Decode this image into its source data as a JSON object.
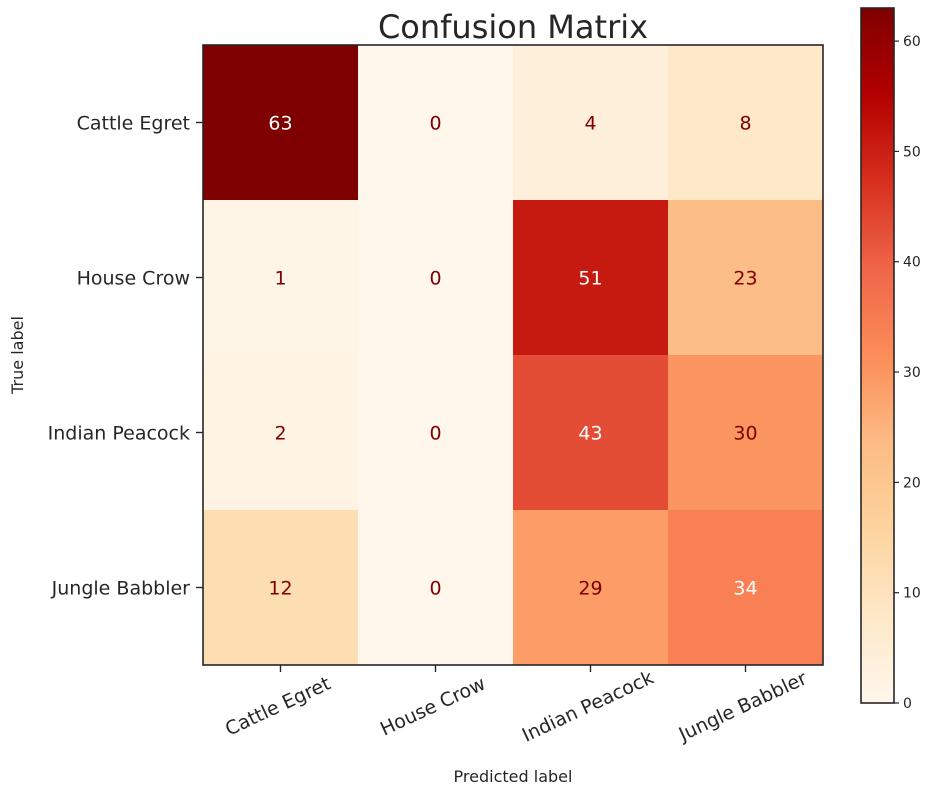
{
  "chart_data": {
    "type": "heatmap",
    "title": "Confusion Matrix",
    "xlabel": "Predicted label",
    "ylabel": "True label",
    "x_categories": [
      "Cattle Egret",
      "House Crow",
      "Indian Peacock",
      "Jungle Babbler"
    ],
    "y_categories": [
      "Cattle Egret",
      "House Crow",
      "Indian Peacock",
      "Jungle Babbler"
    ],
    "values": [
      [
        63,
        0,
        4,
        8
      ],
      [
        1,
        0,
        51,
        23
      ],
      [
        2,
        0,
        43,
        30
      ],
      [
        12,
        0,
        29,
        34
      ]
    ],
    "colormap": "OrRd",
    "colorbar": {
      "range": [
        0,
        63
      ],
      "ticks": [
        0,
        10,
        20,
        30,
        40,
        50,
        60
      ]
    },
    "text_colors": {
      "light": "#ffffff",
      "dark": "#7f0000"
    },
    "x_tick_rotation_deg": -25
  }
}
